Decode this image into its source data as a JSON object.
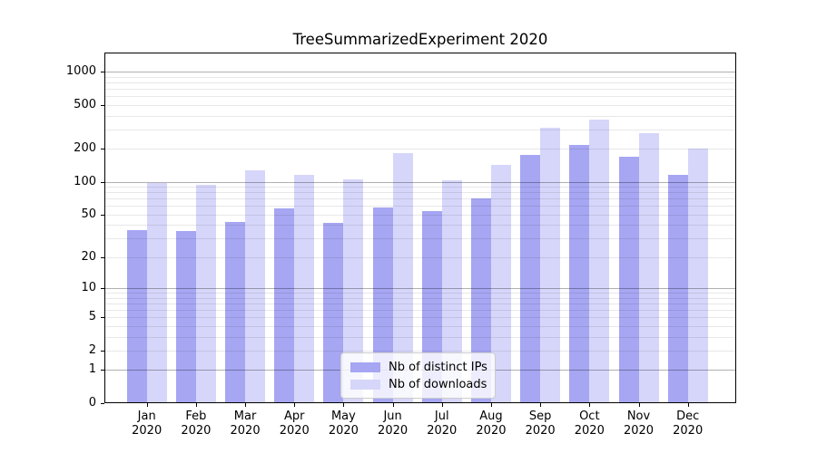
{
  "title": "TreeSummarizedExperiment 2020",
  "legend": {
    "items": [
      {
        "label": "Nb of distinct IPs",
        "color": "#a6a6f3"
      },
      {
        "label": "Nb of downloads",
        "color": "#d6d6fa"
      }
    ]
  },
  "chart_data": {
    "type": "bar",
    "title": "TreeSummarizedExperiment 2020",
    "categories": [
      "Jan",
      "Feb",
      "Mar",
      "Apr",
      "May",
      "Jun",
      "Jul",
      "Aug",
      "Sep",
      "Oct",
      "Nov",
      "Dec"
    ],
    "year": "2020",
    "series": [
      {
        "name": "Nb of distinct IPs",
        "color": "#a6a6f3",
        "values": [
          36,
          35,
          43,
          57,
          42,
          58,
          54,
          71,
          177,
          217,
          168,
          116
        ]
      },
      {
        "name": "Nb of downloads",
        "color": "#d6d6fa",
        "values": [
          98,
          94,
          128,
          115,
          106,
          183,
          103,
          143,
          311,
          371,
          276,
          200
        ]
      }
    ],
    "yscale": "log1p",
    "yticks": [
      0,
      1,
      2,
      5,
      10,
      20,
      50,
      100,
      200,
      500,
      1000
    ],
    "ylim": [
      0,
      1500
    ],
    "xlabel": "",
    "ylabel": "",
    "grid": "both",
    "legend_position": "lower center",
    "axis_color": "#000000",
    "major_grid_color": "#b0b0b0",
    "minor_grid_color": "#e8e8e8"
  }
}
